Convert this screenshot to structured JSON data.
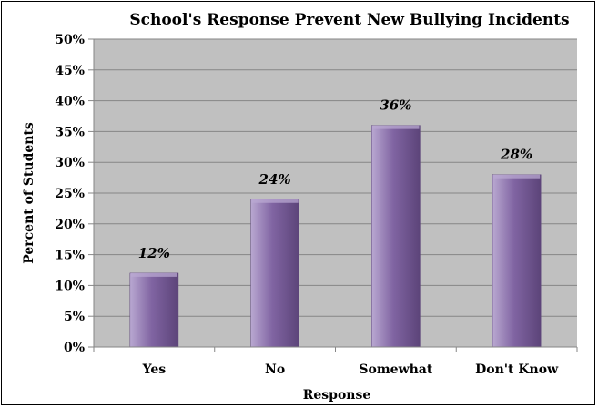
{
  "chart_data": {
    "type": "bar",
    "title": "School's Response Prevent New Bullying Incidents",
    "xlabel": "Response",
    "ylabel": "Percent of Students",
    "categories": [
      "Yes",
      "No",
      "Somewhat",
      "Don't Know"
    ],
    "values": [
      12,
      24,
      36,
      28
    ],
    "data_labels": [
      "12%",
      "24%",
      "36%",
      "28%"
    ],
    "ylim": [
      0,
      50
    ],
    "y_ticks": [
      0,
      5,
      10,
      15,
      20,
      25,
      30,
      35,
      40,
      45,
      50
    ],
    "y_tick_labels": [
      "0%",
      "5%",
      "10%",
      "15%",
      "20%",
      "25%",
      "30%",
      "35%",
      "40%",
      "45%",
      "50%"
    ],
    "grid": true,
    "legend": "none",
    "colors": {
      "plot_background": "#c0c0c0",
      "gridline": "#868686",
      "bar_fill": "#8064a2",
      "bar_highlight": "#b9a8d1",
      "bar_shadow": "#5c4479"
    }
  }
}
